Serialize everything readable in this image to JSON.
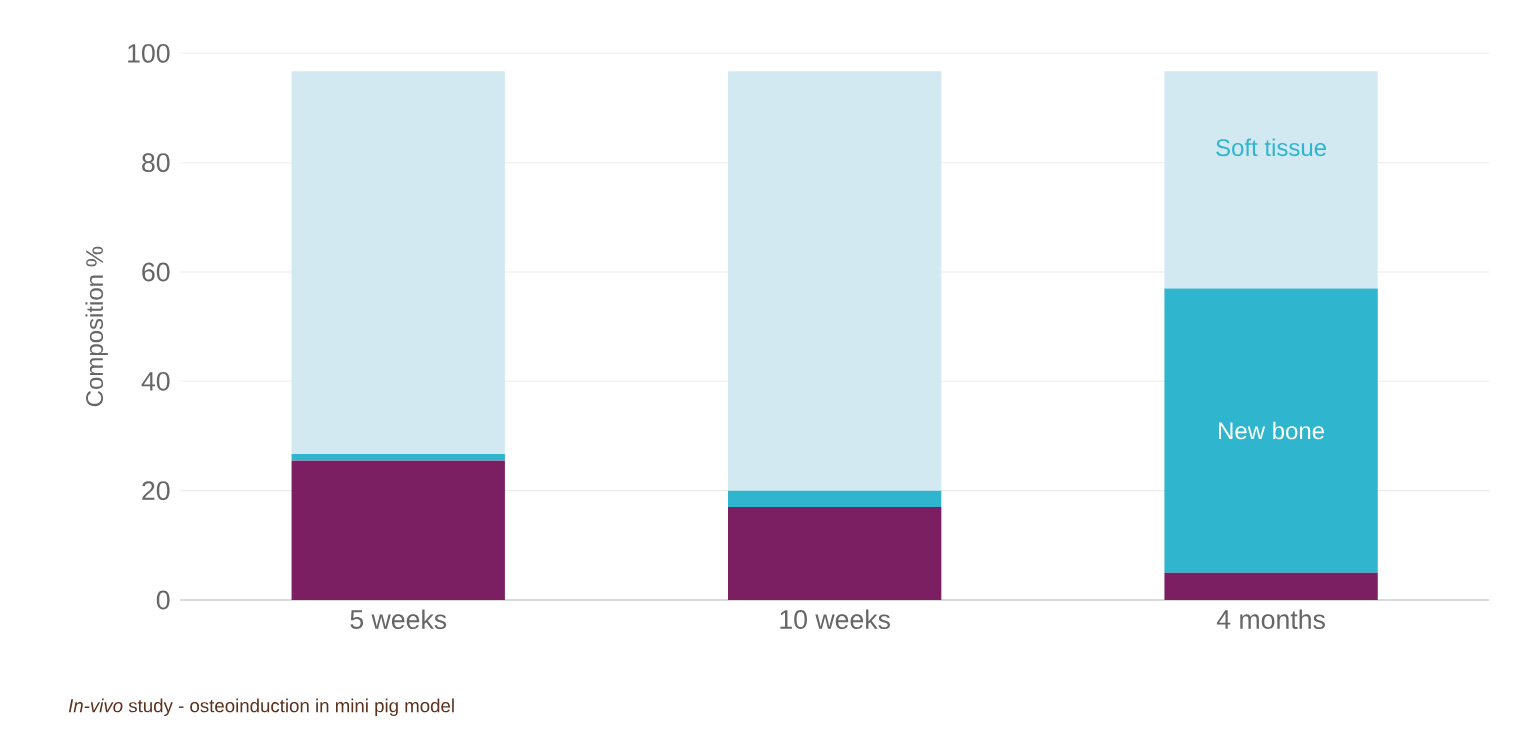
{
  "chart_data": {
    "type": "bar",
    "stacked": true,
    "ylabel": "Composition %",
    "categories": [
      "5 weeks",
      "10 weeks",
      "4 months"
    ],
    "series": [
      {
        "color": "#7b1f62",
        "values": [
          25.5,
          17,
          5
        ]
      },
      {
        "name": "New bone",
        "color": "#2fb5cd",
        "values": [
          1.2,
          3,
          52
        ]
      },
      {
        "name": "Soft tissue",
        "color": "#d3e9f1",
        "values": [
          70,
          76.7,
          39.7
        ]
      }
    ],
    "ylim": [
      0,
      100
    ],
    "yticks": [
      0,
      20,
      40,
      60,
      80,
      100
    ],
    "grid": "y",
    "annotations": [
      "*In-vivo* study - osteoinduction in mini pig model"
    ]
  }
}
